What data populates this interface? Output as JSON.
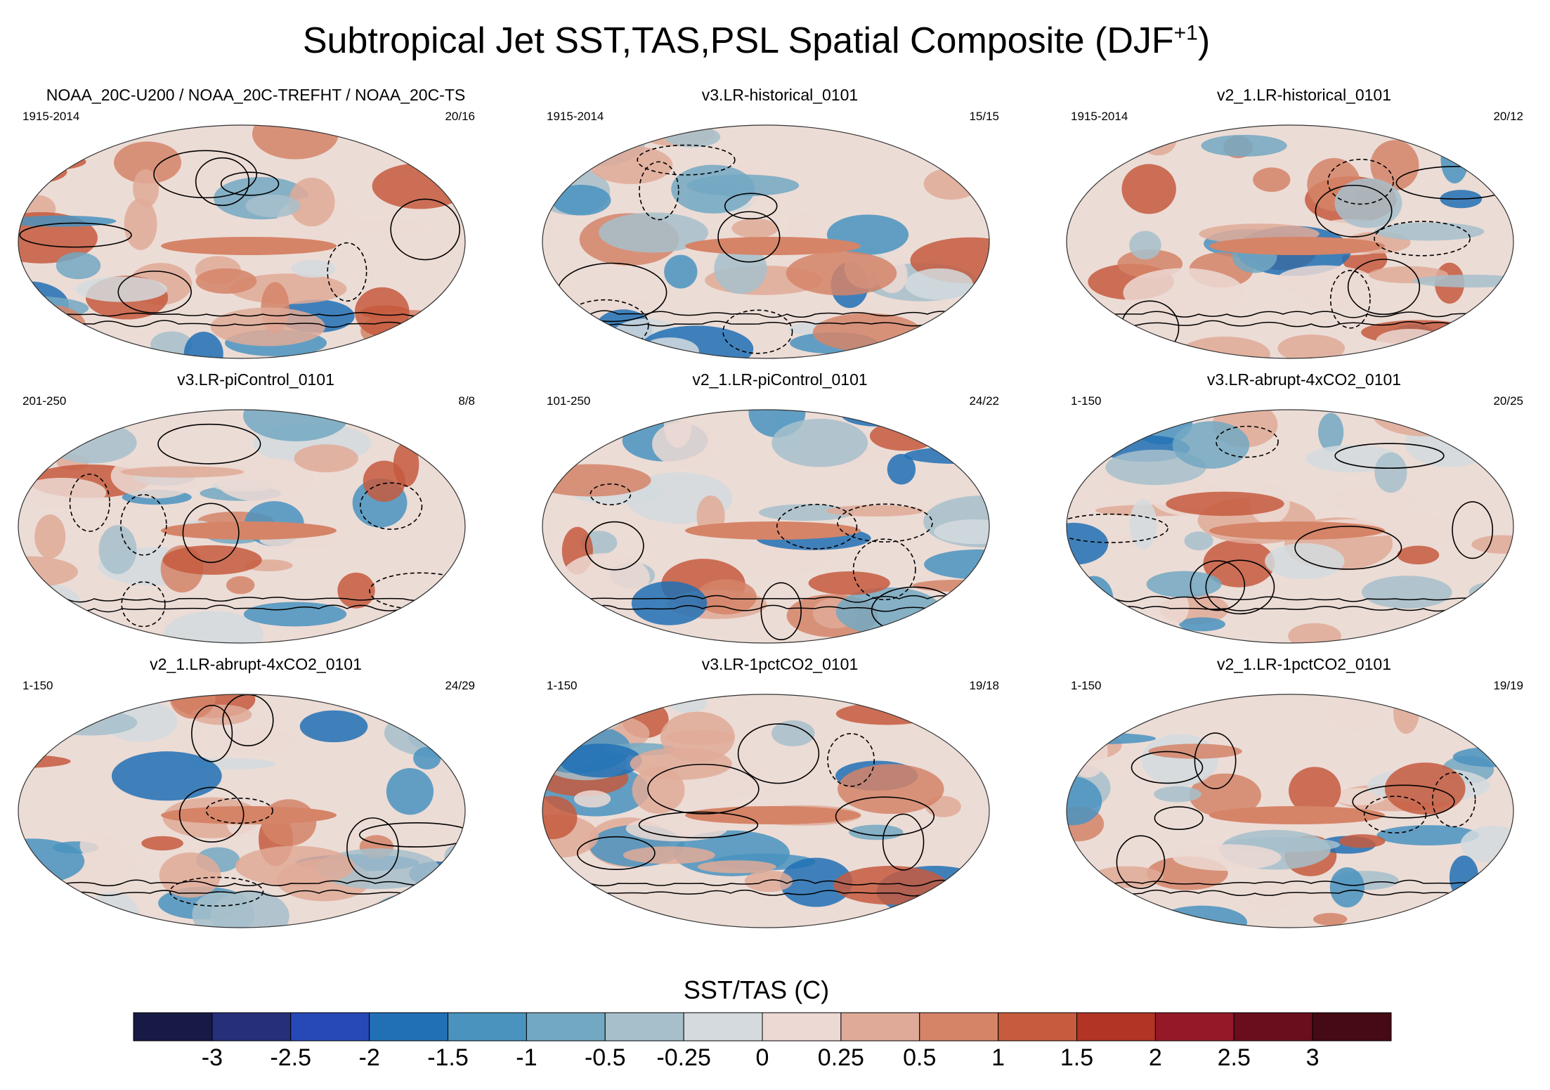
{
  "title": "Subtropical Jet SST,TAS,PSL Spatial Composite (DJF",
  "title_sup": "+1",
  "title_close": ")",
  "chart_data": {
    "type": "heatmap",
    "description_units": "SST/TAS (C)",
    "colorbar": {
      "title": "SST/TAS (C)",
      "tick_labels": [
        "-3",
        "-2.5",
        "-2",
        "-1.5",
        "-1",
        "-0.5",
        "-0.25",
        "0",
        "0.25",
        "0.5",
        "1",
        "1.5",
        "2",
        "2.5",
        "3"
      ],
      "colors": [
        "#171a45",
        "#262f79",
        "#2749b8",
        "#2170b5",
        "#4a93bf",
        "#73a8c2",
        "#a7bfcb",
        "#d4dade",
        "#ecd9d4",
        "#e0aa98",
        "#d58468",
        "#c65b3e",
        "#b13424",
        "#951826",
        "#6a0e1d",
        "#450a14"
      ]
    },
    "panels": [
      {
        "title": "NOAA_20C-U200 / NOAA_20C-TREFHT / NOAA_20C-TS",
        "years": "1915-2014",
        "count": "20/16"
      },
      {
        "title": "v3.LR-historical_0101",
        "years": "1915-2014",
        "count": "15/15"
      },
      {
        "title": "v2_1.LR-historical_0101",
        "years": "1915-2014",
        "count": "20/12"
      },
      {
        "title": "v3.LR-piControl_0101",
        "years": "201-250",
        "count": "8/8"
      },
      {
        "title": "v2_1.LR-piControl_0101",
        "years": "101-250",
        "count": "24/22"
      },
      {
        "title": "v3.LR-abrupt-4xCO2_0101",
        "years": "1-150",
        "count": "20/25"
      },
      {
        "title": "v2_1.LR-abrupt-4xCO2_0101",
        "years": "1-150",
        "count": "24/29"
      },
      {
        "title": "v3.LR-1pctCO2_0101",
        "years": "1-150",
        "count": "19/18"
      },
      {
        "title": "v2_1.LR-1pctCO2_0101",
        "years": "1-150",
        "count": "19/19"
      }
    ]
  }
}
